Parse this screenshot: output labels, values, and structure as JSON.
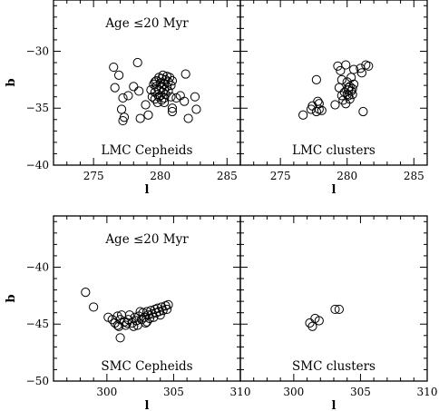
{
  "chart_data": [
    {
      "type": "scatter",
      "xlabel": "l",
      "ylabel": "b",
      "xlim": [
        272,
        286
      ],
      "ylim": [
        -40,
        -25.5
      ],
      "xticks": [
        275,
        280,
        285
      ],
      "yticks": [
        -30,
        -35,
        -40
      ],
      "top_label": "Age ≤20 Myr",
      "bottom_label": "LMC Cepheids",
      "points": [
        [
          276.5,
          -31.4
        ],
        [
          276.6,
          -33.2
        ],
        [
          276.9,
          -32.1
        ],
        [
          277.2,
          -34.1
        ],
        [
          277.1,
          -35.1
        ],
        [
          277.3,
          -35.8
        ],
        [
          277.2,
          -36.1
        ],
        [
          277.6,
          -33.9
        ],
        [
          278.0,
          -33.1
        ],
        [
          278.3,
          -31.0
        ],
        [
          278.4,
          -33.5
        ],
        [
          278.5,
          -35.9
        ],
        [
          278.9,
          -34.7
        ],
        [
          279.1,
          -35.6
        ],
        [
          279.3,
          -33.4
        ],
        [
          279.6,
          -32.7
        ],
        [
          279.9,
          -34.0
        ],
        [
          280.1,
          -34.3
        ],
        [
          280.3,
          -34.5
        ],
        [
          280.9,
          -35.3
        ],
        [
          281.2,
          -34.1
        ],
        [
          281.5,
          -33.9
        ],
        [
          281.8,
          -34.4
        ],
        [
          282.1,
          -35.9
        ],
        [
          282.6,
          -34.0
        ],
        [
          282.7,
          -35.1
        ],
        [
          281.9,
          -32.0
        ],
        [
          279.5,
          -32.9
        ],
        [
          279.6,
          -33.6
        ],
        [
          279.6,
          -34.2
        ],
        [
          279.7,
          -32.6
        ],
        [
          279.7,
          -33.1
        ],
        [
          279.8,
          -33.8
        ],
        [
          279.8,
          -34.5
        ],
        [
          279.9,
          -32.3
        ],
        [
          279.9,
          -33.4
        ],
        [
          280.0,
          -32.8
        ],
        [
          280.0,
          -33.9
        ],
        [
          280.1,
          -32.4
        ],
        [
          280.1,
          -33.2
        ],
        [
          280.2,
          -33.6
        ],
        [
          280.2,
          -32.1
        ],
        [
          280.3,
          -32.9
        ],
        [
          280.3,
          -33.4
        ],
        [
          280.4,
          -32.5
        ],
        [
          280.4,
          -33.8
        ],
        [
          280.5,
          -32.2
        ],
        [
          280.5,
          -33.1
        ],
        [
          280.6,
          -32.7
        ],
        [
          280.6,
          -33.5
        ],
        [
          280.7,
          -32.3
        ],
        [
          280.8,
          -33.0
        ],
        [
          280.8,
          -34.0
        ],
        [
          280.9,
          -32.6
        ],
        [
          279.4,
          -34.0
        ],
        [
          280.3,
          -34.1
        ],
        [
          280.9,
          -35.0
        ]
      ]
    },
    {
      "type": "scatter",
      "xlabel": "l",
      "xlim": [
        272,
        286
      ],
      "ylim": [
        -40,
        -25.5
      ],
      "xticks": [
        275,
        280,
        285
      ],
      "yticks": [
        -30,
        -35,
        -40
      ],
      "bottom_label": "LMC clusters",
      "points": [
        [
          276.7,
          -35.6
        ],
        [
          277.3,
          -35.1
        ],
        [
          277.4,
          -34.8
        ],
        [
          277.7,
          -35.3
        ],
        [
          277.9,
          -34.6
        ],
        [
          277.9,
          -35.1
        ],
        [
          278.1,
          -35.2
        ],
        [
          277.7,
          -32.5
        ],
        [
          277.8,
          -34.4
        ],
        [
          279.1,
          -34.7
        ],
        [
          279.3,
          -31.3
        ],
        [
          279.4,
          -33.2
        ],
        [
          279.5,
          -31.7
        ],
        [
          279.6,
          -32.5
        ],
        [
          279.6,
          -33.9
        ],
        [
          279.7,
          -34.3
        ],
        [
          279.8,
          -33.6
        ],
        [
          279.9,
          -31.2
        ],
        [
          279.9,
          -34.6
        ],
        [
          280.0,
          -33.8
        ],
        [
          280.0,
          -32.7
        ],
        [
          280.1,
          -33.4
        ],
        [
          280.1,
          -33.9
        ],
        [
          280.2,
          -33.1
        ],
        [
          280.2,
          -34.2
        ],
        [
          280.3,
          -32.3
        ],
        [
          280.3,
          -33.5
        ],
        [
          280.4,
          -33.8
        ],
        [
          280.5,
          -32.9
        ],
        [
          280.5,
          -31.6
        ],
        [
          281.0,
          -31.5
        ],
        [
          281.1,
          -31.9
        ],
        [
          281.4,
          -31.2
        ],
        [
          281.6,
          -31.3
        ],
        [
          281.2,
          -35.3
        ],
        [
          280.1,
          -33.2
        ],
        [
          280.4,
          -33.3
        ]
      ]
    },
    {
      "type": "scatter",
      "xlabel": "l",
      "ylabel": "b",
      "xlim": [
        296,
        310
      ],
      "ylim": [
        -50,
        -35.5
      ],
      "xticks": [
        300,
        305,
        310
      ],
      "yticks": [
        -40,
        -45,
        -50
      ],
      "top_label": "Age ≤20 Myr",
      "bottom_label": "SMC Cepheids",
      "points": [
        [
          298.4,
          -42.2
        ],
        [
          299.0,
          -43.5
        ],
        [
          300.1,
          -44.4
        ],
        [
          300.4,
          -44.6
        ],
        [
          300.6,
          -44.9
        ],
        [
          300.8,
          -44.3
        ],
        [
          300.8,
          -45.1
        ],
        [
          301.0,
          -44.6
        ],
        [
          301.0,
          -46.2
        ],
        [
          301.1,
          -44.2
        ],
        [
          301.3,
          -44.8
        ],
        [
          301.4,
          -45.1
        ],
        [
          301.6,
          -44.6
        ],
        [
          301.7,
          -44.2
        ],
        [
          301.9,
          -44.9
        ],
        [
          302.1,
          -44.4
        ],
        [
          302.2,
          -44.7
        ],
        [
          302.3,
          -45.1
        ],
        [
          302.4,
          -44.3
        ],
        [
          302.6,
          -44.6
        ],
        [
          302.7,
          -44.0
        ],
        [
          302.8,
          -44.4
        ],
        [
          302.9,
          -44.9
        ],
        [
          303.0,
          -43.9
        ],
        [
          303.1,
          -44.2
        ],
        [
          303.2,
          -44.5
        ],
        [
          303.3,
          -43.8
        ],
        [
          303.4,
          -44.1
        ],
        [
          303.5,
          -44.4
        ],
        [
          303.6,
          -43.7
        ],
        [
          303.7,
          -44.0
        ],
        [
          303.8,
          -43.6
        ],
        [
          303.9,
          -43.9
        ],
        [
          304.0,
          -44.2
        ],
        [
          304.1,
          -43.5
        ],
        [
          304.2,
          -43.8
        ],
        [
          304.4,
          -43.4
        ],
        [
          304.5,
          -43.7
        ],
        [
          304.6,
          -43.3
        ],
        [
          302.5,
          -43.9
        ],
        [
          302.0,
          -45.2
        ],
        [
          303.0,
          -44.8
        ],
        [
          301.5,
          -44.9
        ],
        [
          300.9,
          -45.2
        ]
      ]
    },
    {
      "type": "scatter",
      "xlabel": "l",
      "xlim": [
        296,
        310
      ],
      "ylim": [
        -50,
        -35.5
      ],
      "xticks": [
        300,
        305,
        310
      ],
      "yticks": [
        -40,
        -45,
        -50
      ],
      "bottom_label": "SMC clusters",
      "points": [
        [
          301.2,
          -44.9
        ],
        [
          301.4,
          -45.2
        ],
        [
          301.6,
          -44.5
        ],
        [
          301.9,
          -44.7
        ],
        [
          303.1,
          -43.7
        ],
        [
          303.4,
          -43.7
        ]
      ]
    }
  ]
}
